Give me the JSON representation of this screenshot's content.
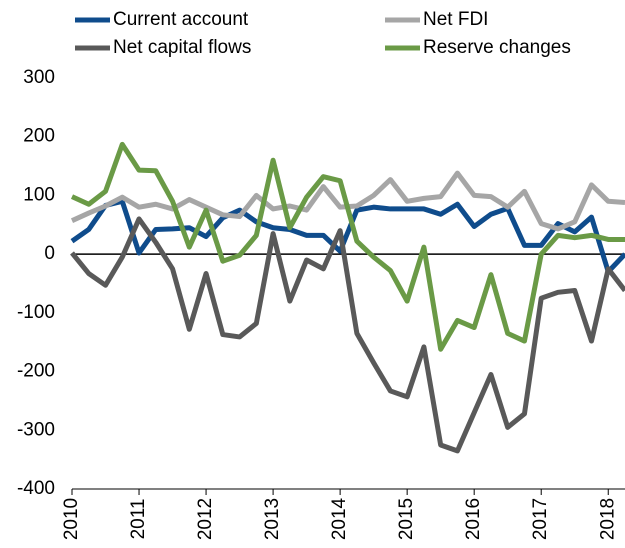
{
  "chart_data": {
    "type": "line",
    "x": [
      2010,
      2010.25,
      2010.5,
      2010.75,
      2011,
      2011.25,
      2011.5,
      2011.75,
      2012,
      2012.25,
      2012.5,
      2012.75,
      2013,
      2013.25,
      2013.5,
      2013.75,
      2014,
      2014.25,
      2014.5,
      2014.75,
      2015,
      2015.25,
      2015.5,
      2015.75,
      2016,
      2016.25,
      2016.5,
      2016.75,
      2017,
      2017.25,
      2017.5,
      2017.75,
      2018,
      2018.25
    ],
    "series": [
      {
        "name": "Current account",
        "color": "#0f4c8c",
        "values": [
          22,
          42,
          83,
          90,
          2,
          42,
          43,
          45,
          30,
          62,
          75,
          55,
          45,
          42,
          32,
          32,
          5,
          75,
          80,
          77,
          77,
          77,
          68,
          85,
          47,
          68,
          78,
          15,
          15,
          52,
          38,
          63,
          -30,
          0
        ]
      },
      {
        "name": "Net FDI",
        "color": "#a6a6a6",
        "values": [
          57,
          70,
          82,
          97,
          80,
          85,
          77,
          93,
          80,
          67,
          64,
          100,
          77,
          82,
          75,
          115,
          80,
          82,
          100,
          127,
          90,
          95,
          98,
          138,
          100,
          98,
          80,
          107,
          52,
          43,
          55,
          118,
          90,
          88
        ]
      },
      {
        "name": "Net capital flows",
        "color": "#595959",
        "values": [
          2,
          -33,
          -53,
          -5,
          60,
          20,
          -25,
          -128,
          -33,
          -137,
          -141,
          -118,
          35,
          -80,
          -10,
          -25,
          40,
          -135,
          -185,
          -233,
          -243,
          -158,
          -325,
          -335,
          -270,
          -205,
          -295,
          -272,
          -75,
          -65,
          -62,
          -148,
          -25,
          -62
        ]
      },
      {
        "name": "Reserve changes",
        "color": "#6a9a46",
        "values": [
          98,
          85,
          107,
          187,
          143,
          142,
          90,
          12,
          75,
          -12,
          -2,
          32,
          160,
          45,
          97,
          132,
          125,
          22,
          -5,
          -28,
          -80,
          12,
          -162,
          -113,
          -125,
          -35,
          -135,
          -148,
          0,
          32,
          28,
          32,
          25,
          25
        ]
      }
    ],
    "xlim": [
      2010,
      2018.25
    ],
    "xticks": [
      2010,
      2011,
      2012,
      2013,
      2014,
      2015,
      2016,
      2017,
      2018
    ],
    "ylim": [
      -400,
      300
    ],
    "yticks": [
      -400,
      -300,
      -200,
      -100,
      0,
      100,
      200,
      300
    ]
  }
}
